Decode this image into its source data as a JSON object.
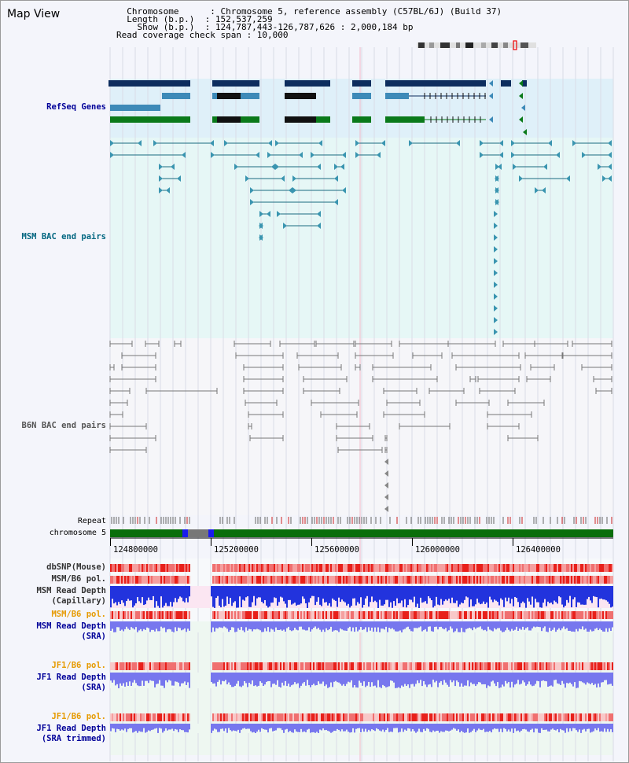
{
  "header": {
    "title": "Map View",
    "lines": [
      "  Chromosome      : Chromosome 5, reference assembly (C57BL/6J) (Build 37)",
      "  Length (b.p.)  : 152,537,259",
      "    Show (b.p.)  : 124,787,443-126,787,626 : 2,000,184 bp",
      "Read coverage check span : 10,000"
    ]
  },
  "tracks": {
    "refseq": {
      "label": "RefSeq Genes",
      "color": "#000099"
    },
    "msm_bac": {
      "label": "MSM BAC end pairs",
      "color": "#006680"
    },
    "b6n_bac": {
      "label": "B6N BAC end pairs",
      "color": "#555555"
    },
    "repeat": {
      "label": "Repeat"
    },
    "chrom": {
      "label": "chromosome 5"
    },
    "dbsnp": {
      "label": "dbSNP(Mouse)"
    },
    "msm_b6_pol": {
      "label": "MSM/B6 pol."
    },
    "msm_depth_cap": {
      "label1": "MSM Read Depth",
      "label2": "(Capillary)"
    },
    "msm_b6_pol2": {
      "label": "MSM/B6 pol."
    },
    "msm_depth_sra": {
      "label1": "MSM Read Depth",
      "label2": "(SRA)"
    },
    "jf1_b6_pol": {
      "label": "JF1/B6 pol."
    },
    "jf1_depth_sra": {
      "label1": "JF1 Read Depth",
      "label2": "(SRA)"
    },
    "jf1_b6_pol2": {
      "label": "JF1/B6 pol."
    },
    "jf1_depth_trim": {
      "label1": "JF1 Read Depth",
      "label2": "(SRA trimmed)"
    }
  },
  "axis": {
    "ticks": [
      "124800000",
      "125200000",
      "125600000",
      "126000000",
      "126400000"
    ]
  },
  "colors": {
    "refseq_dark": "#0d2d5e",
    "refseq_mid": "#3d8ab8",
    "refseq_green": "#0a7a1a",
    "msm_line": "#1a6b80",
    "chrom_green": "#0a6e0a",
    "depth_blue": "#2233dd",
    "sra_blue": "#7777ee"
  }
}
